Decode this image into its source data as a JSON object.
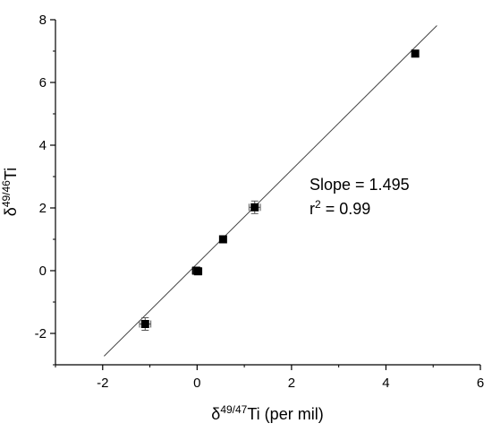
{
  "chart_data": {
    "type": "scatter",
    "xlabel": {
      "prefix": "δ",
      "sup": "49/47",
      "main": "Ti (per mil)"
    },
    "ylabel": {
      "prefix": "δ",
      "sup": "49/46",
      "main": "Ti"
    },
    "xlim": [
      -3,
      6
    ],
    "ylim": [
      -3,
      8
    ],
    "x_ticks": [
      -2,
      0,
      2,
      4,
      6
    ],
    "y_ticks": [
      -2,
      0,
      2,
      4,
      6,
      8
    ],
    "x_tick_labels": [
      "-2",
      "0",
      "2",
      "4",
      "6"
    ],
    "y_tick_labels": [
      "-2",
      "0",
      "2",
      "4",
      "6",
      "8"
    ],
    "series": [
      {
        "x": [
          -1.1,
          -0.02,
          0.02,
          0.55,
          1.22,
          4.62
        ],
        "y": [
          -1.7,
          0.0,
          -0.02,
          1.0,
          2.02,
          6.92
        ],
        "x_err": [
          0.12,
          0.08,
          0.08,
          0.06,
          0.12,
          0.06
        ],
        "y_err": [
          0.2,
          0.08,
          0.08,
          0.08,
          0.2,
          0.08
        ]
      }
    ],
    "fit_line": {
      "slope": 1.495,
      "intercept": 0.22,
      "x_range": [
        -1.97,
        5.08
      ]
    },
    "annotations": {
      "slope": "Slope = 1.495",
      "r2_prefix": "r",
      "r2_sup": "2",
      "r2_suffix": " = 0.99"
    },
    "grid": false,
    "legend": "none"
  }
}
